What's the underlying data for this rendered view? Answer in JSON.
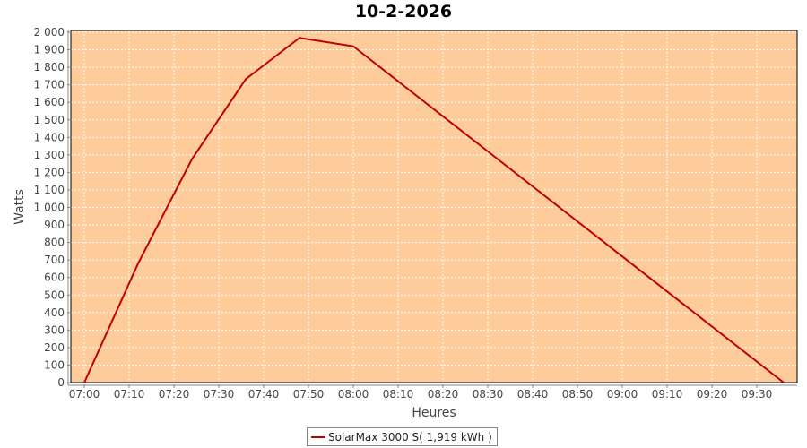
{
  "chart_data": {
    "type": "line",
    "title": "10-2-2026",
    "xlabel": "Heures",
    "ylabel": "Watts",
    "xlim": [
      "06:57",
      "09:39"
    ],
    "ylim": [
      0,
      2000
    ],
    "x_ticks": [
      "07:00",
      "07:10",
      "07:20",
      "07:30",
      "07:40",
      "07:50",
      "08:00",
      "08:10",
      "08:20",
      "08:30",
      "08:40",
      "08:50",
      "09:00",
      "09:10",
      "09:20",
      "09:30"
    ],
    "y_ticks": [
      "0",
      "100",
      "200",
      "300",
      "400",
      "500",
      "600",
      "700",
      "800",
      "900",
      "1 000",
      "1 100",
      "1 200",
      "1 300",
      "1 400",
      "1 500",
      "1 600",
      "1 700",
      "1 800",
      "1 900",
      "2 000"
    ],
    "grid": true,
    "legend_position": "bottom",
    "background_color": "#fdcc9a",
    "series": [
      {
        "name": "SolarMax 3000 S( 1,919 kWh )",
        "color": "#c00000",
        "x": [
          "07:00",
          "07:12",
          "07:24",
          "07:36",
          "07:48",
          "08:00",
          "09:36"
        ],
        "y": [
          0,
          680,
          1275,
          1732,
          1968,
          1920,
          0
        ]
      }
    ]
  }
}
